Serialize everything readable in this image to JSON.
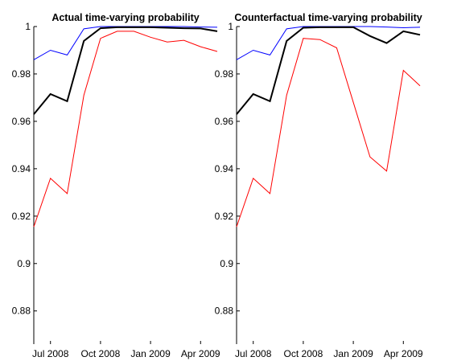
{
  "chart_data": [
    {
      "type": "line",
      "title": "Actual time-varying probability",
      "categories": [
        null,
        "Jul 2008",
        null,
        null,
        "Oct 2008",
        null,
        null,
        "Jan 2009",
        null,
        null,
        "Apr 2009",
        null
      ],
      "series": [
        {
          "color": "#0000ff",
          "values": [
            0.986,
            0.99,
            0.988,
            0.999,
            1.0,
            1.0,
            1.0,
            1.0,
            1.0,
            1.0,
            0.9998,
            0.9997
          ]
        },
        {
          "color": "#000000",
          "values": [
            0.963,
            0.9715,
            0.9685,
            0.9939,
            0.9993,
            0.9997,
            0.9997,
            0.9997,
            0.9995,
            0.9993,
            0.9992,
            0.998
          ]
        },
        {
          "color": "#ff0000",
          "values": [
            0.9155,
            0.936,
            0.9295,
            0.971,
            0.995,
            0.998,
            0.998,
            0.9955,
            0.9935,
            0.9942,
            0.9915,
            0.9895
          ]
        }
      ],
      "ylim": [
        0.866,
        1
      ],
      "yticks": [
        0.88,
        0.9,
        0.92,
        0.94,
        0.96,
        0.98,
        1
      ]
    },
    {
      "type": "line",
      "title": "Counterfactual time-varying probability",
      "categories": [
        null,
        "Jul 2008",
        null,
        null,
        "Oct 2008",
        null,
        null,
        "Jan 2009",
        null,
        null,
        "Apr 2009",
        null
      ],
      "series": [
        {
          "color": "#0000ff",
          "values": [
            0.986,
            0.99,
            0.988,
            0.999,
            1.0,
            1.0,
            1.0,
            1.0,
            1.0,
            0.9998,
            0.9995,
            0.9997
          ]
        },
        {
          "color": "#000000",
          "values": [
            0.963,
            0.9715,
            0.9685,
            0.9939,
            0.9995,
            0.9997,
            0.9997,
            0.9997,
            0.996,
            0.993,
            0.998,
            0.9965
          ]
        },
        {
          "color": "#ff0000",
          "values": [
            0.9155,
            0.936,
            0.9295,
            0.971,
            0.995,
            0.9945,
            0.991,
            0.968,
            0.945,
            0.939,
            0.9815,
            0.975
          ]
        }
      ],
      "ylim": [
        0.866,
        1
      ],
      "yticks": [
        0.88,
        0.9,
        0.92,
        0.94,
        0.96,
        0.98,
        1
      ]
    }
  ]
}
